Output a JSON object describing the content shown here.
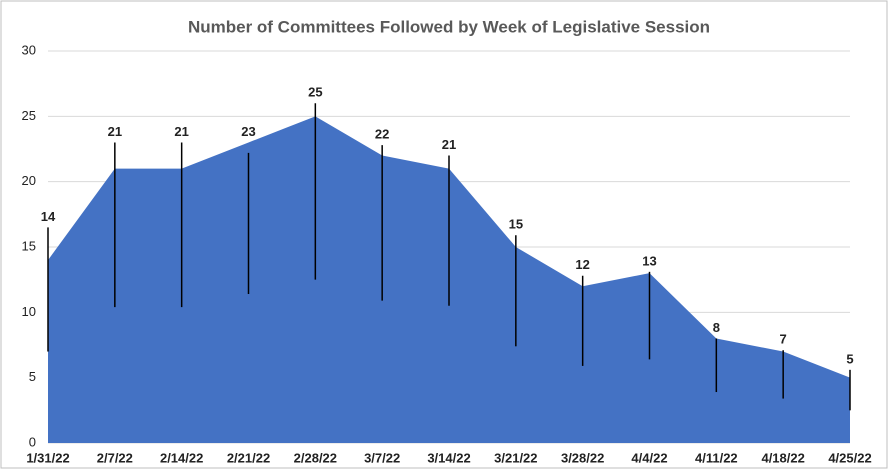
{
  "chart_data": {
    "type": "area",
    "title": "Number of Committees Followed by Week of Legislative Session",
    "categories": [
      "1/31/22",
      "2/7/22",
      "2/14/22",
      "2/21/22",
      "2/28/22",
      "3/7/22",
      "3/14/22",
      "3/21/22",
      "3/28/22",
      "4/4/22",
      "4/11/22",
      "4/18/22",
      "4/25/22"
    ],
    "series": [
      {
        "name": "Committees",
        "color": "#4472c4",
        "values": [
          14,
          21,
          21,
          23,
          25,
          22,
          21,
          15,
          12,
          13,
          8,
          7,
          5
        ],
        "lows": [
          7.0,
          10.4,
          10.4,
          11.4,
          12.5,
          10.9,
          10.5,
          7.4,
          5.9,
          6.4,
          3.9,
          3.4,
          2.5
        ],
        "highs": [
          16.5,
          23.0,
          23.0,
          22.2,
          26.0,
          22.8,
          22.0,
          15.9,
          12.8,
          13.1,
          8.0,
          7.1,
          5.6
        ]
      }
    ],
    "ylim": [
      0,
      30
    ],
    "yticks": [
      0,
      5,
      10,
      15,
      20,
      25,
      30
    ],
    "grid": true,
    "data_labels": true
  }
}
